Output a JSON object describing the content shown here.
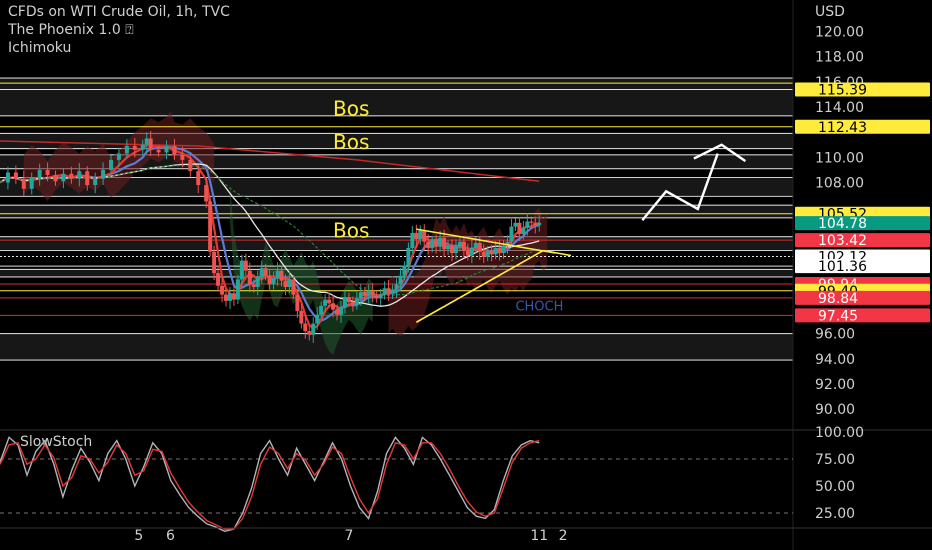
{
  "header": {
    "title": "CFDs on WTI Crude Oil, 1h, TVC",
    "indicator1": "The Phoenix 1.0 ⍰",
    "indicator2": "Ichimoku"
  },
  "colors": {
    "background": "#000000",
    "bull": "#26a69a",
    "bear": "#ef5350",
    "level_line": "#ffeb3b",
    "red_label": "#f23645",
    "teal_label": "#089981",
    "yellow_label": "#ffeb3b",
    "white_label": "#ffffff",
    "stoch_k": "#b2b5be",
    "stoch_d": "#e53935"
  },
  "chart_data": [
    {
      "type": "candlestick",
      "title": "CFDs on WTI Crude Oil, 1h, TVC",
      "y_axis": {
        "currency": "USD",
        "ylim": [
          88.5,
          122.5
        ],
        "ticks": [
          "120.00",
          "118.00",
          "116.00",
          "114.00",
          "110.00",
          "108.00",
          "96.00",
          "94.00",
          "92.00",
          "90.00"
        ]
      },
      "x_axis": {
        "ticks": [
          {
            "label": "5",
            "x": 0.175
          },
          {
            "label": "6",
            "x": 0.215
          },
          {
            "label": "7",
            "x": 0.44
          },
          {
            "label": "11",
            "x": 0.68
          },
          {
            "label": "2",
            "x": 0.71
          }
        ]
      },
      "close_path": [
        [
          0.0,
          108.0
        ],
        [
          0.01,
          108.8
        ],
        [
          0.02,
          108.3
        ],
        [
          0.03,
          107.5
        ],
        [
          0.04,
          108.4
        ],
        [
          0.05,
          109.0
        ],
        [
          0.06,
          108.6
        ],
        [
          0.07,
          108.1
        ],
        [
          0.08,
          108.7
        ],
        [
          0.09,
          108.3
        ],
        [
          0.1,
          108.9
        ],
        [
          0.11,
          107.8
        ],
        [
          0.12,
          108.3
        ],
        [
          0.13,
          109.0
        ],
        [
          0.14,
          109.8
        ],
        [
          0.15,
          110.3
        ],
        [
          0.16,
          110.9
        ],
        [
          0.17,
          110.6
        ],
        [
          0.18,
          111.0
        ],
        [
          0.185,
          111.5
        ],
        [
          0.19,
          110.6
        ],
        [
          0.2,
          110.4
        ],
        [
          0.21,
          110.9
        ],
        [
          0.22,
          110.2
        ],
        [
          0.23,
          109.8
        ],
        [
          0.24,
          108.9
        ],
        [
          0.25,
          107.8
        ],
        [
          0.26,
          106.5
        ],
        [
          0.265,
          102.5
        ],
        [
          0.27,
          100.8
        ],
        [
          0.275,
          99.8
        ],
        [
          0.28,
          99.1
        ],
        [
          0.285,
          98.6
        ],
        [
          0.29,
          99.2
        ],
        [
          0.295,
          98.7
        ],
        [
          0.3,
          100.3
        ],
        [
          0.305,
          101.8
        ],
        [
          0.31,
          101.0
        ],
        [
          0.315,
          99.9
        ],
        [
          0.32,
          99.7
        ],
        [
          0.325,
          100.5
        ],
        [
          0.33,
          101.2
        ],
        [
          0.335,
          100.6
        ],
        [
          0.34,
          99.9
        ],
        [
          0.345,
          100.4
        ],
        [
          0.35,
          101.0
        ],
        [
          0.355,
          100.2
        ],
        [
          0.36,
          99.7
        ],
        [
          0.365,
          100.3
        ],
        [
          0.37,
          99.1
        ],
        [
          0.375,
          97.8
        ],
        [
          0.38,
          96.8
        ],
        [
          0.385,
          96.2
        ],
        [
          0.39,
          95.9
        ],
        [
          0.395,
          96.8
        ],
        [
          0.4,
          97.5
        ],
        [
          0.405,
          98.2
        ],
        [
          0.41,
          98.7
        ],
        [
          0.415,
          98.4
        ],
        [
          0.42,
          97.9
        ],
        [
          0.425,
          97.5
        ],
        [
          0.43,
          98.1
        ],
        [
          0.435,
          98.9
        ],
        [
          0.44,
          98.5
        ],
        [
          0.445,
          98.3
        ],
        [
          0.45,
          98.8
        ],
        [
          0.455,
          99.3
        ],
        [
          0.46,
          99.0
        ],
        [
          0.465,
          99.4
        ],
        [
          0.47,
          99.0
        ],
        [
          0.475,
          98.8
        ],
        [
          0.48,
          99.1
        ],
        [
          0.485,
          99.6
        ],
        [
          0.49,
          99.2
        ],
        [
          0.495,
          99.5
        ],
        [
          0.5,
          99.9
        ],
        [
          0.505,
          100.6
        ],
        [
          0.51,
          101.4
        ],
        [
          0.515,
          102.8
        ],
        [
          0.52,
          104.0
        ],
        [
          0.525,
          103.5
        ],
        [
          0.53,
          104.2
        ],
        [
          0.535,
          103.3
        ],
        [
          0.54,
          102.8
        ],
        [
          0.545,
          103.4
        ],
        [
          0.55,
          102.9
        ],
        [
          0.555,
          103.6
        ],
        [
          0.56,
          102.7
        ],
        [
          0.565,
          103.0
        ],
        [
          0.57,
          102.4
        ],
        [
          0.575,
          102.9
        ],
        [
          0.58,
          103.3
        ],
        [
          0.585,
          102.6
        ],
        [
          0.59,
          102.2
        ],
        [
          0.595,
          102.8
        ],
        [
          0.6,
          103.2
        ],
        [
          0.605,
          102.5
        ],
        [
          0.61,
          102.1
        ],
        [
          0.615,
          102.6
        ],
        [
          0.62,
          102.3
        ],
        [
          0.625,
          102.8
        ],
        [
          0.63,
          102.4
        ],
        [
          0.635,
          103.0
        ],
        [
          0.64,
          103.3
        ],
        [
          0.645,
          104.5
        ],
        [
          0.65,
          104.8
        ],
        [
          0.655,
          103.9
        ],
        [
          0.66,
          104.4
        ],
        [
          0.665,
          104.9
        ],
        [
          0.67,
          104.8
        ],
        [
          0.675,
          104.6
        ],
        [
          0.68,
          104.8
        ]
      ],
      "levels": [
        {
          "price": 115.9,
          "style": "yellow-thin"
        },
        {
          "price": 115.39,
          "style": "yellow-thin",
          "label": "115.39",
          "label_style": "yellow"
        },
        {
          "price": 112.43,
          "style": "yellow-thin",
          "label": "112.43",
          "label_style": "yellow"
        },
        {
          "price": 105.52,
          "style": "yellow-thin",
          "label": "105.52",
          "label_style": "yellow"
        },
        {
          "price": 104.78,
          "style": "none",
          "label": "104.78",
          "label_style": "teal"
        },
        {
          "price": 103.42,
          "style": "red-thin",
          "label": "103.42",
          "label_style": "red"
        },
        {
          "price": 102.12,
          "style": "white-dotted",
          "label": "102.12",
          "label_style": "white"
        },
        {
          "price": 101.36,
          "style": "white-thin",
          "label": "101.36",
          "label_style": "white"
        },
        {
          "price": 99.94,
          "style": "red-thin",
          "label": "99.94",
          "label_style": "red"
        },
        {
          "price": 99.4,
          "style": "yellow-thin",
          "label": "99.40",
          "label_style": "yellow"
        },
        {
          "price": 98.84,
          "style": "red-thin",
          "label": "98.84",
          "label_style": "red"
        },
        {
          "price": 97.45,
          "style": "red-thin",
          "label": "97.45",
          "label_style": "red"
        }
      ],
      "annotations": [
        {
          "text": "Bos",
          "price": 113.9,
          "x": 0.42
        },
        {
          "text": "Bos",
          "price": 111.2,
          "x": 0.42
        },
        {
          "text": "Bos",
          "price": 104.2,
          "x": 0.42
        },
        {
          "text": "CHOCH",
          "price": 98.4,
          "x": 0.65
        }
      ]
    },
    {
      "type": "line",
      "title": "SlowStoch",
      "ylim": [
        12,
        100
      ],
      "y_ticks": [
        "100.00",
        "75.00",
        "50.00",
        "25.00"
      ],
      "series": [
        {
          "values": [
            72,
            95,
            88,
            60,
            82,
            92,
            70,
            40,
            65,
            85,
            72,
            55,
            80,
            92,
            75,
            50,
            68,
            90,
            80,
            55,
            42,
            30,
            22,
            15,
            12,
            8,
            10,
            25,
            48,
            80,
            92,
            75,
            60,
            85,
            70,
            55,
            72,
            90,
            75,
            50,
            30,
            20,
            45,
            80,
            95,
            85,
            70,
            95,
            88,
            75,
            60,
            45,
            30,
            22,
            20,
            28,
            55,
            78,
            88,
            92,
            90
          ]
        },
        {
          "values": [
            70,
            88,
            90,
            70,
            75,
            88,
            76,
            50,
            58,
            78,
            75,
            62,
            72,
            88,
            80,
            60,
            64,
            84,
            82,
            62,
            48,
            35,
            26,
            18,
            14,
            10,
            10,
            20,
            40,
            70,
            86,
            80,
            66,
            80,
            74,
            60,
            70,
            86,
            80,
            58,
            38,
            25,
            38,
            70,
            90,
            88,
            75,
            90,
            90,
            80,
            66,
            50,
            36,
            26,
            22,
            25,
            48,
            72,
            85,
            90,
            92
          ]
        }
      ]
    }
  ]
}
